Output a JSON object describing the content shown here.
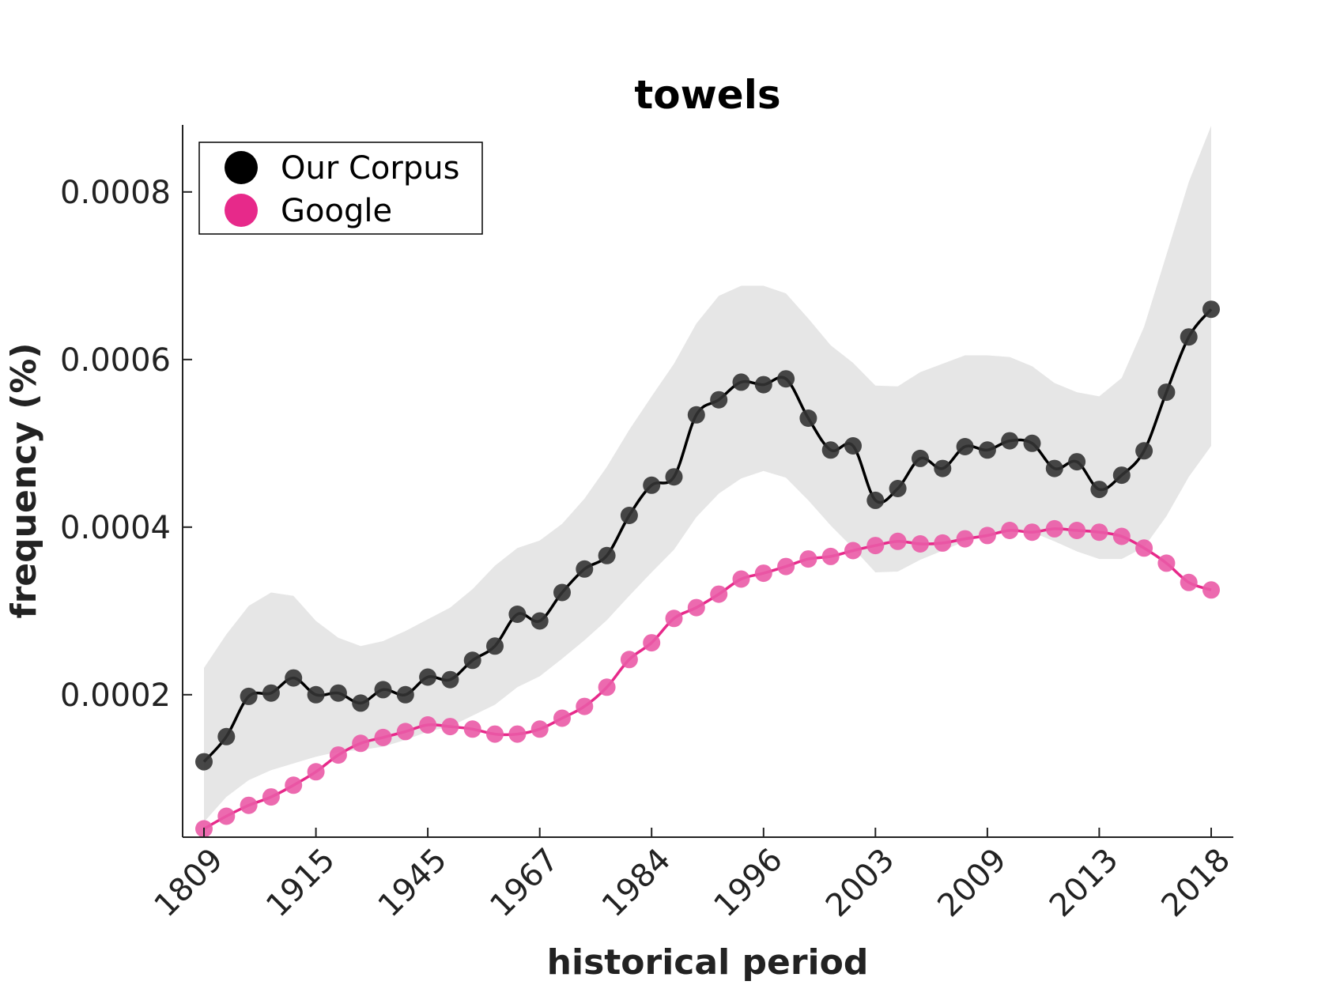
{
  "chart_data": {
    "type": "line",
    "title": "towels",
    "xlabel": "historical period",
    "ylabel": "frequency (%)",
    "x_tick_labels": [
      "1809",
      "1915",
      "1945",
      "1967",
      "1984",
      "1996",
      "2003",
      "2009",
      "2013",
      "2018"
    ],
    "y_ticks": [
      0.0002,
      0.0004,
      0.0006,
      0.0008
    ],
    "y_tick_labels": [
      "0.0002",
      "0.0004",
      "0.0006",
      "0.0008"
    ],
    "ylim": [
      3e-05,
      0.00088
    ],
    "grid": false,
    "legend": "top-left",
    "colors": {
      "corpus": "#000000",
      "google": "#e7298a",
      "band": "#e6e6e6"
    },
    "series": [
      {
        "name": "Our Corpus",
        "points": [
          0.00012,
          0.00015,
          0.000198,
          0.000202,
          0.00022,
          0.0002,
          0.000202,
          0.00019,
          0.000206,
          0.0002,
          0.000221,
          0.000218,
          0.000241,
          0.000258,
          0.000296,
          0.000288,
          0.000322,
          0.00035,
          0.000366,
          0.000414,
          0.00045,
          0.00046,
          0.000534,
          0.000552,
          0.000573,
          0.00057,
          0.000577,
          0.00053,
          0.000492,
          0.000497,
          0.000432,
          0.000446,
          0.000482,
          0.00047,
          0.000496,
          0.000492,
          0.000503,
          0.0005,
          0.00047,
          0.000478,
          0.000445,
          0.000462,
          0.000491,
          0.000561,
          0.000627,
          0.00066
        ],
        "band_upper": [
          0.000232,
          0.000272,
          0.000306,
          0.000322,
          0.000318,
          0.000288,
          0.000268,
          0.000258,
          0.000264,
          0.000276,
          0.00029,
          0.000304,
          0.000326,
          0.000354,
          0.000375,
          0.000384,
          0.000404,
          0.000434,
          0.000472,
          0.000516,
          0.000556,
          0.000595,
          0.000643,
          0.000676,
          0.000688,
          0.000688,
          0.000679,
          0.000649,
          0.000617,
          0.000596,
          0.000569,
          0.000568,
          0.000585,
          0.000595,
          0.000605,
          0.000605,
          0.000603,
          0.000592,
          0.000572,
          0.000561,
          0.000556,
          0.000578,
          0.000639,
          0.000725,
          0.000812,
          0.000879
        ],
        "band_lower": [
          4.8e-05,
          7.8e-05,
          9.8e-05,
          0.00011,
          0.000118,
          0.000126,
          0.000132,
          0.000134,
          0.000138,
          0.000146,
          0.000156,
          0.000162,
          0.000175,
          0.000188,
          0.000209,
          0.000222,
          0.000243,
          0.000265,
          0.000289,
          0.000318,
          0.000346,
          0.000373,
          0.000412,
          0.00044,
          0.000458,
          0.000467,
          0.000459,
          0.000432,
          0.000402,
          0.000375,
          0.000346,
          0.000347,
          0.000361,
          0.000372,
          0.000383,
          0.000392,
          0.000397,
          0.000394,
          0.000383,
          0.000371,
          0.000362,
          0.000362,
          0.000376,
          0.000413,
          0.00046,
          0.000497
        ]
      },
      {
        "name": "Google",
        "points": [
          4e-05,
          5.5e-05,
          6.8e-05,
          7.8e-05,
          9.2e-05,
          0.000108,
          0.000128,
          0.000142,
          0.000149,
          0.000156,
          0.000164,
          0.000162,
          0.000159,
          0.000153,
          0.000153,
          0.000159,
          0.000172,
          0.000186,
          0.000209,
          0.000242,
          0.000262,
          0.000291,
          0.000304,
          0.00032,
          0.000338,
          0.000345,
          0.000353,
          0.000362,
          0.000365,
          0.000372,
          0.000378,
          0.000383,
          0.00038,
          0.000381,
          0.000386,
          0.00039,
          0.000396,
          0.000394,
          0.000398,
          0.000396,
          0.000394,
          0.000389,
          0.000375,
          0.000357,
          0.000334,
          0.000325
        ]
      }
    ]
  }
}
